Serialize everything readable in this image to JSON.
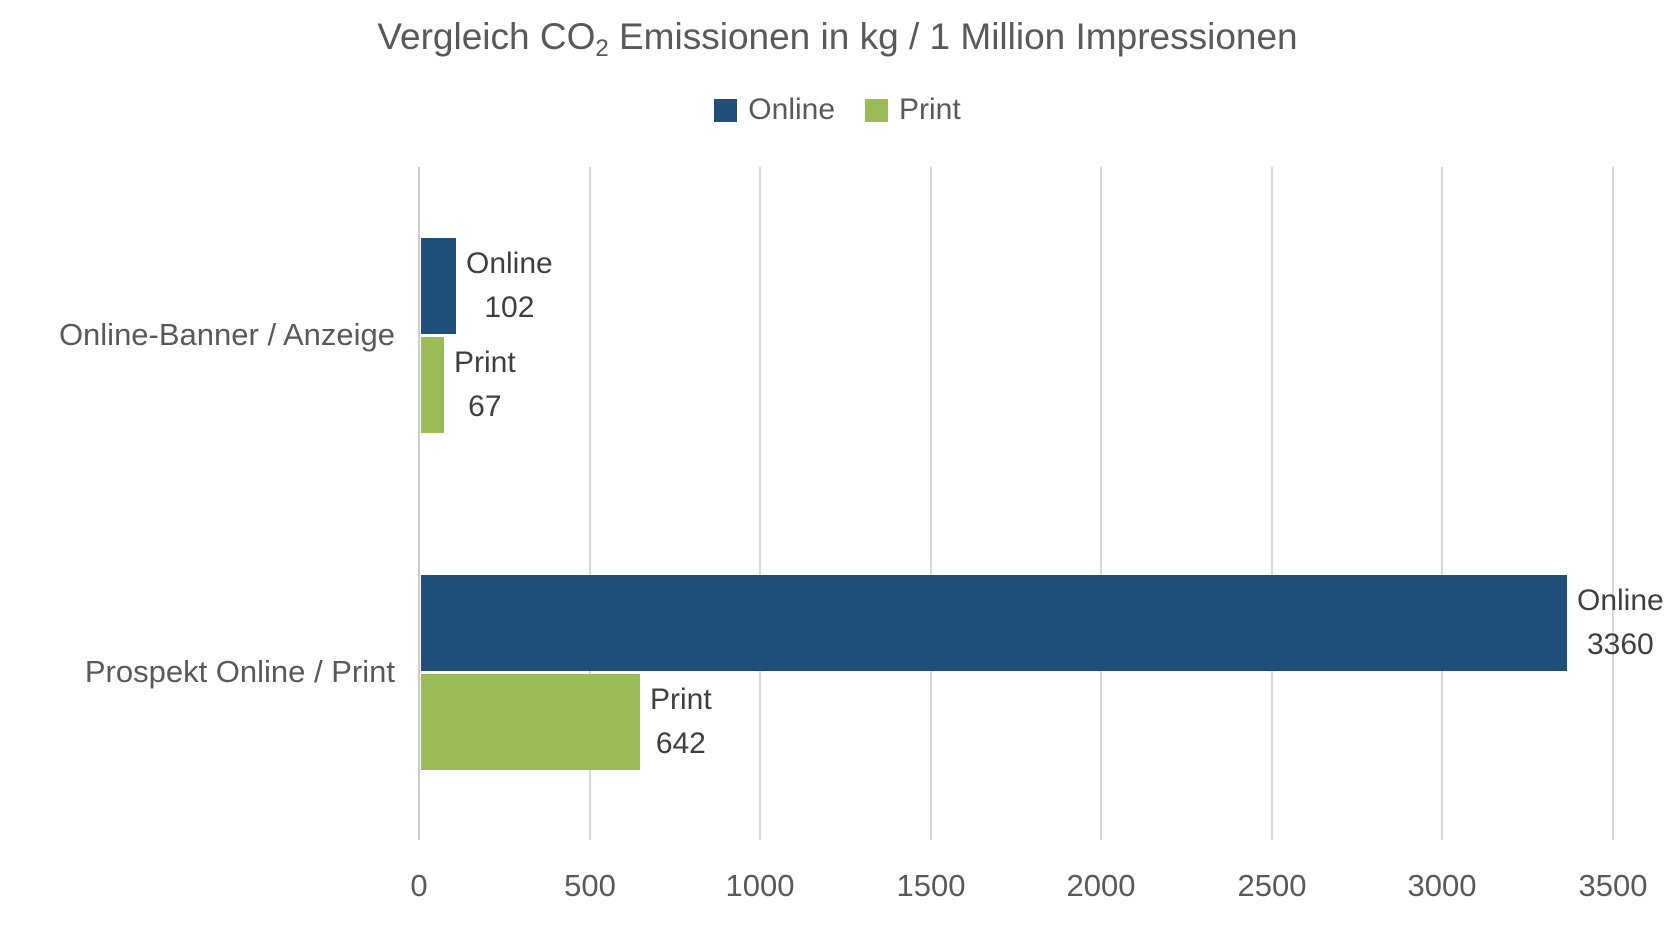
{
  "title": {
    "prefix": "Vergleich CO",
    "subscript": "2",
    "suffix": " Emissionen in kg / 1 Million Impressionen"
  },
  "chart_data": {
    "type": "bar",
    "orientation": "horizontal",
    "title": "Vergleich CO2 Emissionen in kg / 1 Million Impressionen",
    "categories": [
      "Online-Banner / Anzeige",
      "Prospekt Online / Print"
    ],
    "series": [
      {
        "name": "Online",
        "color": "#1F4E79",
        "values": [
          102,
          3360
        ]
      },
      {
        "name": "Print",
        "color": "#9BBB59",
        "values": [
          67,
          642
        ]
      }
    ],
    "xlim": [
      0,
      3500
    ],
    "xticks": [
      0,
      500,
      1000,
      1500,
      2000,
      2500,
      3000,
      3500
    ],
    "grid": true,
    "legend_position": "top",
    "data_labels": {
      "show": true,
      "placement": "outside-end",
      "format": "series name above value"
    }
  },
  "colors": {
    "title_text": "#595959",
    "axis_text": "#595959",
    "data_label_text": "#3F3F3F",
    "gridline": "#D9D9D9",
    "background": "#FFFFFF"
  }
}
